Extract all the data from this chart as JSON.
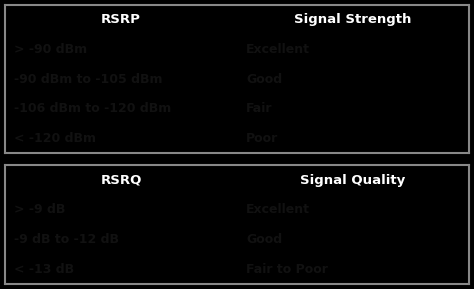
{
  "table1": {
    "header": [
      "RSRP",
      "Signal Strength"
    ],
    "rows": [
      [
        "> -90 dBm",
        "Excellent"
      ],
      [
        "-90 dBm to -105 dBm",
        "Good"
      ],
      [
        "-106 dBm to -120 dBm",
        "Fair"
      ],
      [
        "< -120 dBm",
        "Poor"
      ]
    ],
    "row_colors": [
      "#5abf5a",
      "#f0e040",
      "#e8921e",
      "#cc2200"
    ],
    "header_color": "#0a0a0a",
    "header_text_color": "#ffffff",
    "row_text_color": "#111111"
  },
  "table2": {
    "header": [
      "RSRQ",
      "Signal Quality"
    ],
    "rows": [
      [
        "> -9 dB",
        "Excellent"
      ],
      [
        "-9 dB to -12 dB",
        "Good"
      ],
      [
        "< -13 dB",
        "Fair to Poor"
      ]
    ],
    "row_colors": [
      "#5abf5a",
      "#f0e040",
      "#cc2200"
    ],
    "header_color": "#0a0a0a",
    "header_text_color": "#ffffff",
    "row_text_color": "#111111"
  },
  "background_color": "#000000",
  "border_color": "#888888",
  "fig_width": 4.74,
  "fig_height": 2.89,
  "dpi": 100,
  "font_size_header": 9.5,
  "font_size_row": 9.0
}
